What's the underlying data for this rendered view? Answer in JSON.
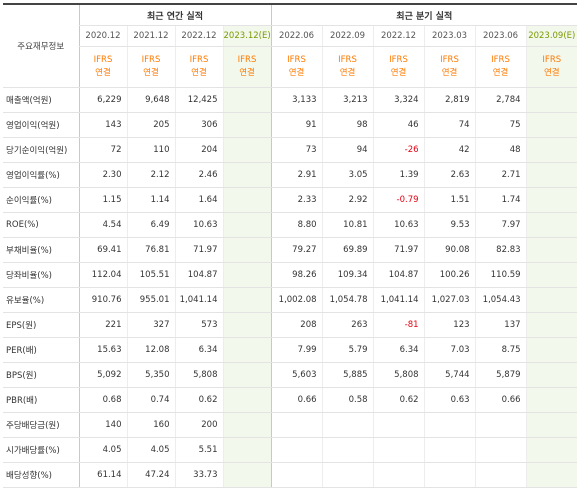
{
  "header": {
    "corner_label": "주요재무정보",
    "annual_group": "최근 연간 실적",
    "quarter_group": "최근 분기 실적",
    "annual_periods": [
      "2020.12",
      "2021.12",
      "2022.12",
      "2023.12(E)"
    ],
    "quarter_periods": [
      "2022.06",
      "2022.09",
      "2022.12",
      "2023.03",
      "2023.06",
      "2023.09(E)"
    ],
    "standard_line1": "IFRS",
    "standard_line2": "연결"
  },
  "colors": {
    "ifrs_label": "#ff7a00",
    "negative": "#e60012",
    "estimate_bg": "#f3f8ec",
    "estimate_text": "#7a9a00"
  },
  "rows": [
    {
      "label": "매출액(억원)",
      "annual": [
        "6,229",
        "9,648",
        "12,425",
        ""
      ],
      "quarter": [
        "3,133",
        "3,213",
        "3,324",
        "2,819",
        "2,784",
        ""
      ]
    },
    {
      "label": "영업이익(억원)",
      "annual": [
        "143",
        "205",
        "306",
        ""
      ],
      "quarter": [
        "91",
        "98",
        "46",
        "74",
        "75",
        ""
      ]
    },
    {
      "label": "당기순이익(억원)",
      "annual": [
        "72",
        "110",
        "204",
        ""
      ],
      "quarter": [
        "73",
        "94",
        "-26",
        "42",
        "48",
        ""
      ]
    },
    {
      "label": "영업이익률(%)",
      "annual": [
        "2.30",
        "2.12",
        "2.46",
        ""
      ],
      "quarter": [
        "2.91",
        "3.05",
        "1.39",
        "2.63",
        "2.71",
        ""
      ]
    },
    {
      "label": "순이익률(%)",
      "annual": [
        "1.15",
        "1.14",
        "1.64",
        ""
      ],
      "quarter": [
        "2.33",
        "2.92",
        "-0.79",
        "1.51",
        "1.74",
        ""
      ]
    },
    {
      "label": "ROE(%)",
      "annual": [
        "4.54",
        "6.49",
        "10.63",
        ""
      ],
      "quarter": [
        "8.80",
        "10.81",
        "10.63",
        "9.53",
        "7.97",
        ""
      ]
    },
    {
      "label": "부채비율(%)",
      "annual": [
        "69.41",
        "76.81",
        "71.97",
        ""
      ],
      "quarter": [
        "79.27",
        "69.89",
        "71.97",
        "90.08",
        "82.83",
        ""
      ]
    },
    {
      "label": "당좌비율(%)",
      "annual": [
        "112.04",
        "105.51",
        "104.87",
        ""
      ],
      "quarter": [
        "98.26",
        "109.34",
        "104.87",
        "100.26",
        "110.59",
        ""
      ]
    },
    {
      "label": "유보율(%)",
      "annual": [
        "910.76",
        "955.01",
        "1,041.14",
        ""
      ],
      "quarter": [
        "1,002.08",
        "1,054.78",
        "1,041.14",
        "1,027.03",
        "1,054.43",
        ""
      ]
    },
    {
      "label": "EPS(원)",
      "annual": [
        "221",
        "327",
        "573",
        ""
      ],
      "quarter": [
        "208",
        "263",
        "-81",
        "123",
        "137",
        ""
      ]
    },
    {
      "label": "PER(배)",
      "annual": [
        "15.63",
        "12.08",
        "6.34",
        ""
      ],
      "quarter": [
        "7.99",
        "5.79",
        "6.34",
        "7.03",
        "8.75",
        ""
      ]
    },
    {
      "label": "BPS(원)",
      "annual": [
        "5,092",
        "5,350",
        "5,808",
        ""
      ],
      "quarter": [
        "5,603",
        "5,885",
        "5,808",
        "5,744",
        "5,879",
        ""
      ]
    },
    {
      "label": "PBR(배)",
      "annual": [
        "0.68",
        "0.74",
        "0.62",
        ""
      ],
      "quarter": [
        "0.66",
        "0.58",
        "0.62",
        "0.63",
        "0.66",
        ""
      ]
    },
    {
      "label": "주당배당금(원)",
      "annual": [
        "140",
        "160",
        "200",
        ""
      ],
      "quarter": [
        "",
        "",
        "",
        "",
        "",
        ""
      ]
    },
    {
      "label": "시가배당률(%)",
      "annual": [
        "4.05",
        "4.05",
        "5.51",
        ""
      ],
      "quarter": [
        "",
        "",
        "",
        "",
        "",
        ""
      ]
    },
    {
      "label": "배당성향(%)",
      "annual": [
        "61.14",
        "47.24",
        "33.73",
        ""
      ],
      "quarter": [
        "",
        "",
        "",
        "",
        "",
        ""
      ]
    }
  ]
}
